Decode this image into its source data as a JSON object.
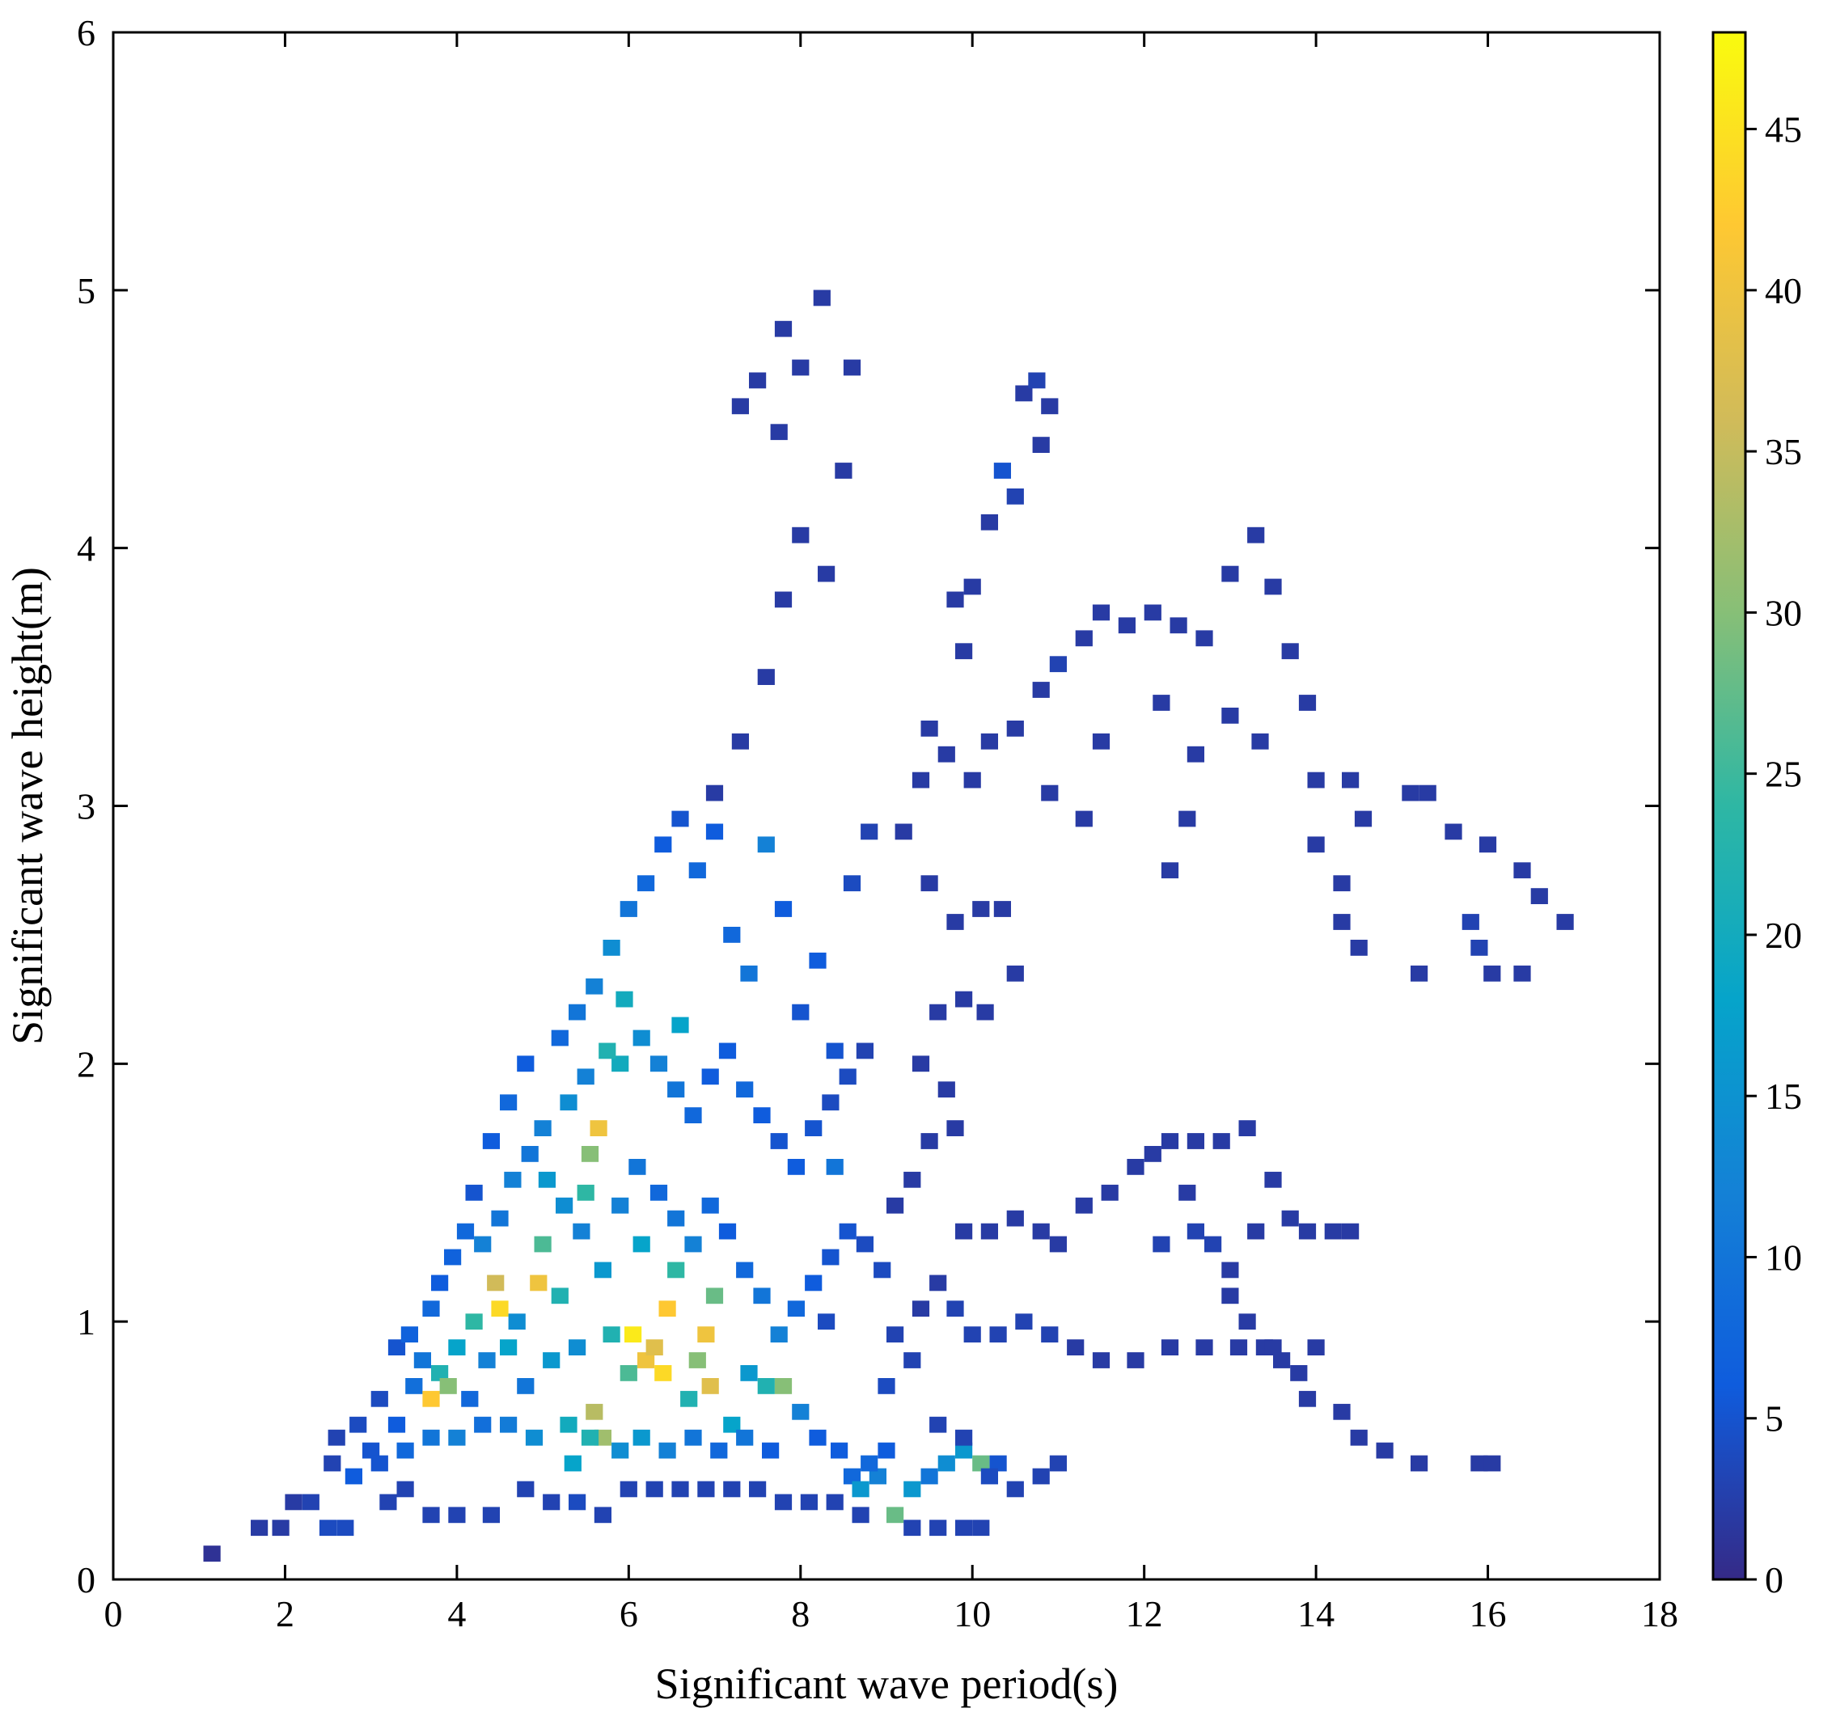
{
  "chart_data": {
    "type": "heatmap",
    "title": "",
    "xlabel": "Significant wave period(s)",
    "ylabel": "Significant wave height(m)",
    "xlim": [
      0,
      18
    ],
    "ylim": [
      0,
      6
    ],
    "xticks": [
      0,
      2,
      4,
      6,
      8,
      10,
      12,
      14,
      16,
      18
    ],
    "yticks": [
      0,
      1,
      2,
      3,
      4,
      5,
      6
    ],
    "colorbar": {
      "range": [
        0,
        48
      ],
      "ticks": [
        0,
        5,
        10,
        15,
        20,
        25,
        30,
        35,
        40,
        45
      ],
      "colormap": "parula",
      "stops": [
        "#352a87",
        "#0f5cdd",
        "#1481d6",
        "#06a4ca",
        "#2eb7a4",
        "#87bf77",
        "#d1bb59",
        "#fec832",
        "#f9fb0e"
      ]
    },
    "cells": [
      [
        1.15,
        0.1,
        1
      ],
      [
        1.7,
        0.2,
        2
      ],
      [
        1.95,
        0.2,
        2
      ],
      [
        2.1,
        0.3,
        2
      ],
      [
        2.3,
        0.3,
        3
      ],
      [
        2.5,
        0.2,
        4
      ],
      [
        2.7,
        0.2,
        4
      ],
      [
        2.55,
        0.45,
        3
      ],
      [
        2.6,
        0.55,
        3
      ],
      [
        2.85,
        0.6,
        4
      ],
      [
        3.0,
        0.5,
        5
      ],
      [
        3.1,
        0.7,
        4
      ],
      [
        3.3,
        0.6,
        6
      ],
      [
        3.5,
        0.75,
        9
      ],
      [
        3.7,
        0.7,
        42
      ],
      [
        3.6,
        0.85,
        10
      ],
      [
        3.8,
        0.8,
        22
      ],
      [
        3.9,
        0.75,
        30
      ],
      [
        4.0,
        0.9,
        18
      ],
      [
        4.15,
        0.7,
        8
      ],
      [
        4.2,
        1.0,
        24
      ],
      [
        4.35,
        0.85,
        12
      ],
      [
        4.5,
        1.05,
        44
      ],
      [
        4.45,
        1.15,
        36
      ],
      [
        4.6,
        0.9,
        18
      ],
      [
        4.7,
        1.0,
        14
      ],
      [
        4.8,
        0.75,
        10
      ],
      [
        4.95,
        1.15,
        40
      ],
      [
        5.0,
        1.3,
        26
      ],
      [
        5.1,
        0.85,
        16
      ],
      [
        5.2,
        1.1,
        22
      ],
      [
        5.3,
        0.6,
        20
      ],
      [
        5.4,
        0.9,
        14
      ],
      [
        5.5,
        1.5,
        24
      ],
      [
        5.55,
        1.65,
        30
      ],
      [
        5.65,
        1.75,
        40
      ],
      [
        5.6,
        0.65,
        34
      ],
      [
        5.7,
        0.55,
        32
      ],
      [
        5.8,
        0.95,
        22
      ],
      [
        5.9,
        2.0,
        20
      ],
      [
        6.0,
        0.8,
        26
      ],
      [
        6.05,
        0.95,
        46
      ],
      [
        6.15,
        1.3,
        18
      ],
      [
        6.2,
        0.85,
        40
      ],
      [
        6.3,
        0.9,
        38
      ],
      [
        6.4,
        0.8,
        44
      ],
      [
        6.45,
        1.05,
        42
      ],
      [
        6.55,
        1.2,
        24
      ],
      [
        6.6,
        2.15,
        18
      ],
      [
        6.7,
        0.7,
        22
      ],
      [
        6.8,
        0.85,
        30
      ],
      [
        6.9,
        0.95,
        40
      ],
      [
        6.95,
        0.75,
        38
      ],
      [
        7.0,
        1.1,
        28
      ],
      [
        7.2,
        0.6,
        18
      ],
      [
        7.4,
        0.8,
        16
      ],
      [
        7.6,
        0.75,
        22
      ],
      [
        7.8,
        0.75,
        30
      ],
      [
        8.0,
        0.65,
        12
      ],
      [
        8.2,
        0.55,
        6
      ],
      [
        8.3,
        1.0,
        4
      ],
      [
        8.4,
        1.6,
        10
      ],
      [
        8.6,
        0.4,
        8
      ],
      [
        8.7,
        0.35,
        16
      ],
      [
        8.9,
        0.4,
        12
      ],
      [
        9.1,
        0.25,
        28
      ],
      [
        9.3,
        0.35,
        16
      ],
      [
        9.5,
        0.4,
        10
      ],
      [
        9.7,
        0.45,
        14
      ],
      [
        9.9,
        0.5,
        16
      ],
      [
        10.1,
        0.45,
        28
      ],
      [
        10.3,
        0.45,
        5
      ],
      [
        4.2,
        1.5,
        5
      ],
      [
        4.4,
        1.7,
        6
      ],
      [
        4.6,
        1.85,
        8
      ],
      [
        4.8,
        2.0,
        6
      ],
      [
        5.0,
        1.75,
        12
      ],
      [
        5.2,
        2.1,
        8
      ],
      [
        5.4,
        2.2,
        10
      ],
      [
        5.6,
        2.3,
        12
      ],
      [
        5.8,
        2.45,
        14
      ],
      [
        6.0,
        2.6,
        10
      ],
      [
        6.2,
        2.7,
        8
      ],
      [
        6.4,
        2.85,
        6
      ],
      [
        6.6,
        2.95,
        5
      ],
      [
        6.8,
        2.75,
        8
      ],
      [
        7.0,
        2.9,
        6
      ],
      [
        7.2,
        2.5,
        8
      ],
      [
        7.4,
        2.35,
        10
      ],
      [
        7.6,
        2.85,
        12
      ],
      [
        7.8,
        2.6,
        6
      ],
      [
        8.0,
        2.2,
        5
      ],
      [
        8.2,
        2.4,
        6
      ],
      [
        8.4,
        2.05,
        5
      ],
      [
        8.6,
        2.7,
        4
      ],
      [
        8.8,
        2.9,
        3
      ],
      [
        7.0,
        3.05,
        2
      ],
      [
        7.3,
        3.25,
        2
      ],
      [
        7.6,
        3.5,
        2
      ],
      [
        7.8,
        3.8,
        2
      ],
      [
        8.0,
        4.05,
        2
      ],
      [
        8.3,
        3.9,
        2
      ],
      [
        7.3,
        4.55,
        2
      ],
      [
        7.5,
        4.65,
        2
      ],
      [
        7.75,
        4.45,
        2
      ],
      [
        7.8,
        4.85,
        2
      ],
      [
        8.0,
        4.7,
        2
      ],
      [
        8.5,
        4.3,
        2
      ],
      [
        8.25,
        4.97,
        2
      ],
      [
        8.6,
        4.7,
        2
      ],
      [
        9.5,
        3.3,
        2
      ],
      [
        9.8,
        3.8,
        2
      ],
      [
        9.9,
        3.6,
        2
      ],
      [
        10.0,
        3.85,
        2
      ],
      [
        10.2,
        4.1,
        2
      ],
      [
        10.35,
        4.3,
        5
      ],
      [
        10.5,
        4.2,
        3
      ],
      [
        10.6,
        4.6,
        2
      ],
      [
        10.75,
        4.65,
        3
      ],
      [
        10.9,
        4.55,
        2
      ],
      [
        10.8,
        4.4,
        2
      ],
      [
        9.4,
        3.1,
        2
      ],
      [
        9.7,
        3.2,
        2
      ],
      [
        10.0,
        3.1,
        2
      ],
      [
        10.2,
        3.25,
        2
      ],
      [
        10.5,
        3.3,
        2
      ],
      [
        10.8,
        3.45,
        2
      ],
      [
        11.0,
        3.55,
        3
      ],
      [
        11.3,
        3.65,
        2
      ],
      [
        11.5,
        3.75,
        2
      ],
      [
        11.8,
        3.7,
        2
      ],
      [
        12.1,
        3.75,
        2
      ],
      [
        12.4,
        3.7,
        2
      ],
      [
        12.7,
        3.65,
        2
      ],
      [
        13.0,
        3.9,
        2
      ],
      [
        13.3,
        4.05,
        2
      ],
      [
        13.5,
        3.85,
        2
      ],
      [
        13.7,
        3.6,
        2
      ],
      [
        13.9,
        3.4,
        2
      ],
      [
        10.9,
        3.05,
        2
      ],
      [
        11.3,
        2.95,
        2
      ],
      [
        11.5,
        3.25,
        2
      ],
      [
        12.2,
        3.4,
        2
      ],
      [
        12.6,
        3.2,
        2
      ],
      [
        13.0,
        3.35,
        2
      ],
      [
        13.35,
        3.25,
        2
      ],
      [
        14.0,
        3.1,
        2
      ],
      [
        14.4,
        3.1,
        2
      ],
      [
        14.55,
        2.95,
        2
      ],
      [
        15.1,
        3.05,
        2
      ],
      [
        15.3,
        3.05,
        2
      ],
      [
        15.6,
        2.9,
        2
      ],
      [
        16.0,
        2.85,
        2
      ],
      [
        16.4,
        2.75,
        2
      ],
      [
        16.6,
        2.65,
        2
      ],
      [
        16.9,
        2.55,
        2
      ],
      [
        12.3,
        2.75,
        2
      ],
      [
        12.5,
        2.95,
        2
      ],
      [
        14.0,
        2.85,
        2
      ],
      [
        14.3,
        2.7,
        2
      ],
      [
        14.3,
        2.55,
        2
      ],
      [
        14.5,
        2.45,
        2
      ],
      [
        15.2,
        2.35,
        2
      ],
      [
        15.8,
        2.55,
        3
      ],
      [
        15.9,
        2.45,
        3
      ],
      [
        16.05,
        2.35,
        2
      ],
      [
        16.4,
        2.35,
        2
      ],
      [
        9.2,
        2.9,
        2
      ],
      [
        9.5,
        2.7,
        2
      ],
      [
        9.8,
        2.55,
        2
      ],
      [
        10.1,
        2.6,
        2
      ],
      [
        10.35,
        2.6,
        2
      ],
      [
        10.5,
        2.35,
        2
      ],
      [
        9.6,
        2.2,
        2
      ],
      [
        9.9,
        2.25,
        2
      ],
      [
        10.15,
        2.2,
        2
      ],
      [
        9.4,
        2.0,
        2
      ],
      [
        9.7,
        1.9,
        2
      ],
      [
        9.8,
        1.75,
        2
      ],
      [
        9.5,
        1.7,
        2
      ],
      [
        9.3,
        1.55,
        2
      ],
      [
        9.1,
        1.45,
        2
      ],
      [
        9.9,
        1.35,
        2
      ],
      [
        10.2,
        1.35,
        2
      ],
      [
        10.5,
        1.4,
        2
      ],
      [
        10.8,
        1.35,
        2
      ],
      [
        11.0,
        1.3,
        2
      ],
      [
        11.3,
        1.45,
        2
      ],
      [
        11.6,
        1.5,
        2
      ],
      [
        11.9,
        1.6,
        2
      ],
      [
        12.1,
        1.65,
        2
      ],
      [
        12.3,
        1.7,
        2
      ],
      [
        12.6,
        1.7,
        2
      ],
      [
        12.9,
        1.7,
        2
      ],
      [
        13.2,
        1.75,
        2
      ],
      [
        12.5,
        1.5,
        2
      ],
      [
        12.6,
        1.35,
        3
      ],
      [
        12.2,
        1.3,
        3
      ],
      [
        12.8,
        1.3,
        3
      ],
      [
        13.0,
        1.2,
        2
      ],
      [
        13.3,
        1.35,
        2
      ],
      [
        13.5,
        1.55,
        2
      ],
      [
        13.7,
        1.4,
        2
      ],
      [
        13.9,
        1.35,
        2
      ],
      [
        14.2,
        1.35,
        2
      ],
      [
        14.4,
        1.35,
        2
      ],
      [
        13.0,
        1.1,
        2
      ],
      [
        13.2,
        1.0,
        2
      ],
      [
        13.4,
        0.9,
        2
      ],
      [
        13.6,
        0.85,
        2
      ],
      [
        13.8,
        0.8,
        2
      ],
      [
        14.0,
        0.9,
        2
      ],
      [
        13.9,
        0.7,
        2
      ],
      [
        14.3,
        0.65,
        2
      ],
      [
        14.5,
        0.55,
        2
      ],
      [
        14.8,
        0.5,
        2
      ],
      [
        15.2,
        0.45,
        2
      ],
      [
        15.9,
        0.45,
        2
      ],
      [
        16.05,
        0.45,
        2
      ],
      [
        9.8,
        1.05,
        3
      ],
      [
        10.0,
        0.95,
        3
      ],
      [
        10.3,
        0.95,
        3
      ],
      [
        10.6,
        1.0,
        3
      ],
      [
        10.9,
        0.95,
        3
      ],
      [
        11.2,
        0.9,
        2
      ],
      [
        11.5,
        0.85,
        2
      ],
      [
        11.9,
        0.85,
        2
      ],
      [
        12.3,
        0.9,
        2
      ],
      [
        12.7,
        0.9,
        2
      ],
      [
        13.1,
        0.9,
        2
      ],
      [
        13.5,
        0.9,
        2
      ],
      [
        9.6,
        1.15,
        2
      ],
      [
        9.4,
        1.05,
        2
      ],
      [
        9.1,
        0.95,
        3
      ],
      [
        9.3,
        0.85,
        3
      ],
      [
        9.0,
        0.75,
        4
      ],
      [
        9.6,
        0.6,
        3
      ],
      [
        9.9,
        0.55,
        3
      ],
      [
        10.2,
        0.4,
        4
      ],
      [
        10.5,
        0.35,
        3
      ],
      [
        10.8,
        0.4,
        3
      ],
      [
        11.0,
        0.45,
        3
      ],
      [
        9.3,
        0.2,
        3
      ],
      [
        9.6,
        0.2,
        3
      ],
      [
        9.9,
        0.2,
        3
      ],
      [
        10.1,
        0.2,
        3
      ],
      [
        8.7,
        0.25,
        3
      ],
      [
        8.4,
        0.3,
        3
      ],
      [
        8.1,
        0.3,
        3
      ],
      [
        7.8,
        0.3,
        3
      ],
      [
        7.5,
        0.35,
        3
      ],
      [
        7.2,
        0.35,
        3
      ],
      [
        6.9,
        0.35,
        3
      ],
      [
        6.6,
        0.35,
        3
      ],
      [
        6.3,
        0.35,
        3
      ],
      [
        6.0,
        0.35,
        3
      ],
      [
        5.7,
        0.25,
        3
      ],
      [
        5.4,
        0.3,
        4
      ],
      [
        5.1,
        0.3,
        3
      ],
      [
        4.8,
        0.35,
        3
      ],
      [
        4.4,
        0.25,
        3
      ],
      [
        4.0,
        0.25,
        3
      ],
      [
        3.7,
        0.25,
        3
      ],
      [
        3.4,
        0.35,
        3
      ],
      [
        3.2,
        0.3,
        3
      ],
      [
        3.3,
        0.9,
        5
      ],
      [
        3.45,
        0.95,
        7
      ],
      [
        3.7,
        1.05,
        8
      ],
      [
        3.8,
        1.15,
        6
      ],
      [
        3.95,
        1.25,
        7
      ],
      [
        4.1,
        1.35,
        8
      ],
      [
        4.3,
        1.3,
        12
      ],
      [
        4.5,
        1.4,
        10
      ],
      [
        4.65,
        1.55,
        12
      ],
      [
        4.85,
        1.65,
        10
      ],
      [
        5.05,
        1.55,
        16
      ],
      [
        5.25,
        1.45,
        14
      ],
      [
        5.45,
        1.35,
        12
      ],
      [
        5.7,
        1.2,
        16
      ],
      [
        5.9,
        1.45,
        12
      ],
      [
        6.1,
        1.6,
        10
      ],
      [
        6.35,
        1.5,
        8
      ],
      [
        6.55,
        1.4,
        10
      ],
      [
        6.75,
        1.3,
        12
      ],
      [
        6.95,
        1.45,
        8
      ],
      [
        7.15,
        1.35,
        6
      ],
      [
        7.35,
        1.2,
        8
      ],
      [
        7.55,
        1.1,
        10
      ],
      [
        7.75,
        0.95,
        12
      ],
      [
        7.95,
        1.05,
        8
      ],
      [
        8.15,
        1.15,
        6
      ],
      [
        8.35,
        1.25,
        5
      ],
      [
        8.55,
        1.35,
        5
      ],
      [
        8.75,
        1.3,
        4
      ],
      [
        8.95,
        1.2,
        4
      ],
      [
        5.3,
        1.85,
        14
      ],
      [
        5.5,
        1.95,
        12
      ],
      [
        5.75,
        2.05,
        22
      ],
      [
        5.95,
        2.25,
        20
      ],
      [
        6.15,
        2.1,
        14
      ],
      [
        6.35,
        2.0,
        12
      ],
      [
        6.55,
        1.9,
        10
      ],
      [
        6.75,
        1.8,
        8
      ],
      [
        6.95,
        1.95,
        6
      ],
      [
        7.15,
        2.05,
        6
      ],
      [
        7.35,
        1.9,
        8
      ],
      [
        7.55,
        1.8,
        6
      ],
      [
        7.75,
        1.7,
        5
      ],
      [
        7.95,
        1.6,
        6
      ],
      [
        8.15,
        1.75,
        5
      ],
      [
        8.35,
        1.85,
        4
      ],
      [
        8.55,
        1.95,
        4
      ],
      [
        8.75,
        2.05,
        3
      ],
      [
        5.35,
        0.45,
        18
      ],
      [
        5.55,
        0.55,
        22
      ],
      [
        5.9,
        0.5,
        14
      ],
      [
        6.15,
        0.55,
        16
      ],
      [
        6.45,
        0.5,
        12
      ],
      [
        6.75,
        0.55,
        10
      ],
      [
        7.05,
        0.5,
        8
      ],
      [
        7.35,
        0.55,
        10
      ],
      [
        7.65,
        0.5,
        6
      ],
      [
        8.45,
        0.5,
        6
      ],
      [
        8.8,
        0.45,
        8
      ],
      [
        9.0,
        0.5,
        6
      ],
      [
        2.8,
        0.4,
        6
      ],
      [
        3.1,
        0.45,
        5
      ],
      [
        3.4,
        0.5,
        8
      ],
      [
        3.7,
        0.55,
        10
      ],
      [
        4.0,
        0.55,
        12
      ],
      [
        4.3,
        0.6,
        9
      ],
      [
        4.6,
        0.6,
        11
      ],
      [
        4.9,
        0.55,
        14
      ]
    ]
  }
}
